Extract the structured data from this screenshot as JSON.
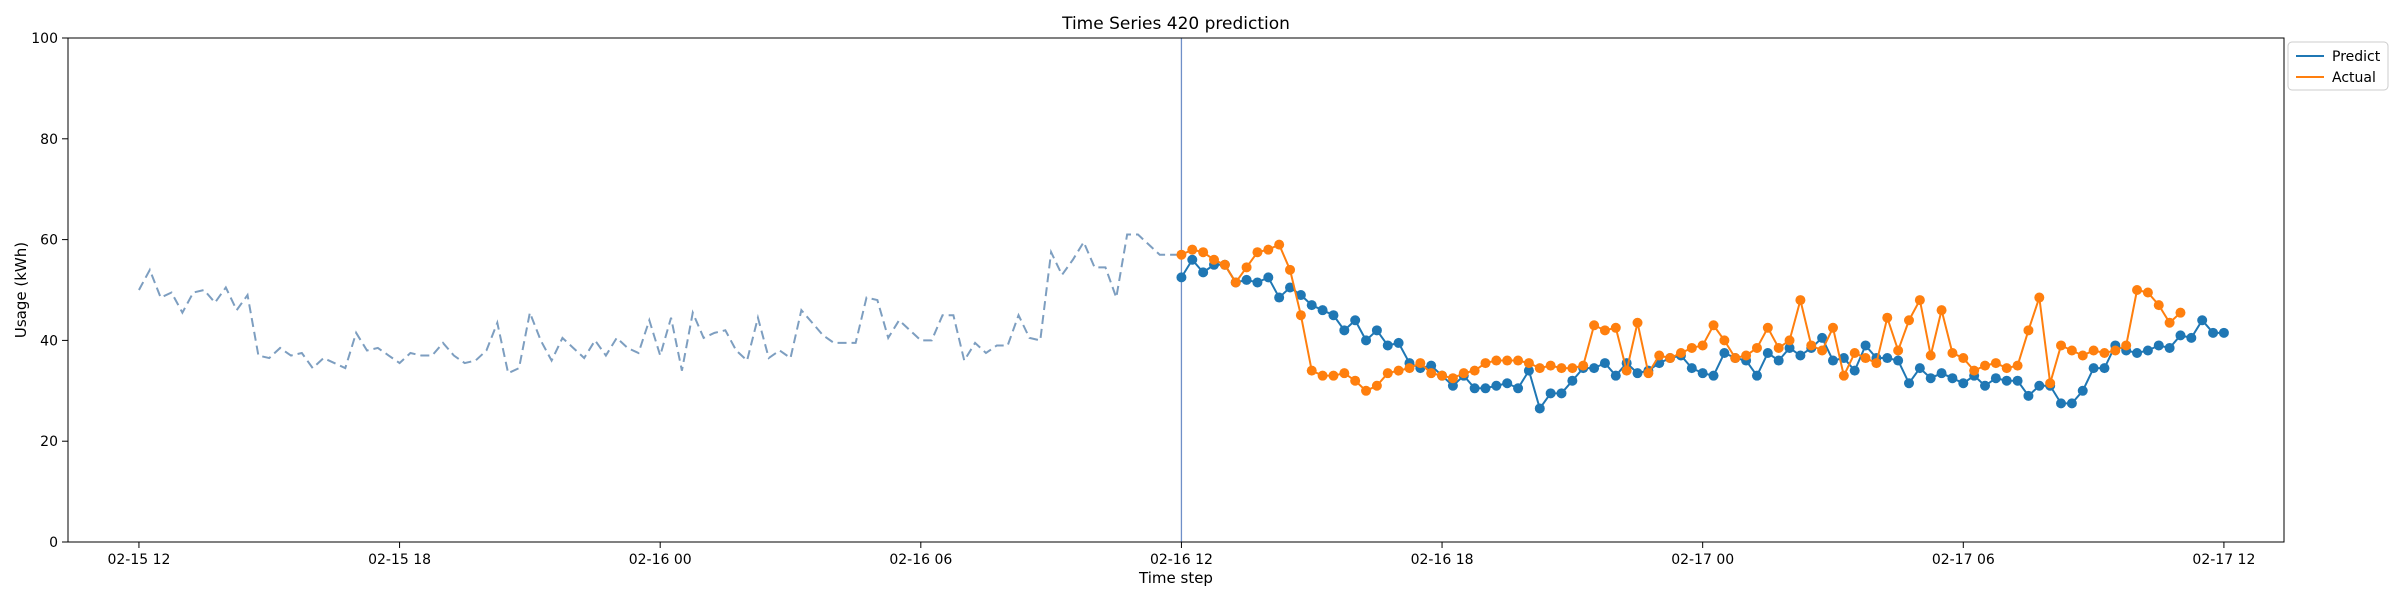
{
  "chart_data": {
    "type": "line",
    "title": "Time Series 420 prediction",
    "xlabel": "Time step",
    "ylabel": "Usage (kWh)",
    "ylim": [
      0,
      100
    ],
    "yticks": [
      0,
      20,
      40,
      60,
      80,
      100
    ],
    "xlim": [
      "2024-02-15 10:22",
      "2024-02-17 13:23"
    ],
    "xticks": [
      {
        "t": "2024-02-15 12:00",
        "label": "02-15 12"
      },
      {
        "t": "2024-02-15 18:00",
        "label": "02-15 18"
      },
      {
        "t": "2024-02-16 00:00",
        "label": "02-16 00"
      },
      {
        "t": "2024-02-16 06:00",
        "label": "02-16 06"
      },
      {
        "t": "2024-02-16 12:00",
        "label": "02-16 12"
      },
      {
        "t": "2024-02-16 18:00",
        "label": "02-16 18"
      },
      {
        "t": "2024-02-17 00:00",
        "label": "02-17 00"
      },
      {
        "t": "2024-02-17 06:00",
        "label": "02-17 06"
      },
      {
        "t": "2024-02-17 12:00",
        "label": "02-17 12"
      }
    ],
    "x_interval_minutes": 15,
    "forecast_start": "2024-02-16 12:00",
    "grid": false,
    "legend_position": "top-right",
    "history": {
      "start": "2024-02-15 12:00",
      "color": "#7d9ec0",
      "style": "dashed",
      "values": [
        50,
        54,
        48.5,
        49.5,
        45.5,
        49.5,
        50,
        47.5,
        50.5,
        46,
        49,
        37,
        36.5,
        38.5,
        37,
        37.5,
        34.5,
        36.5,
        35.5,
        34.5,
        41.5,
        38,
        38.5,
        37,
        35.5,
        37.5,
        37,
        37,
        39.5,
        37,
        35.5,
        36,
        38,
        43.5,
        33.5,
        34.5,
        45.5,
        40,
        36,
        40.5,
        38.5,
        36.5,
        40,
        37,
        40.5,
        38.5,
        37.5,
        44,
        37,
        44.5,
        34,
        45.5,
        40.5,
        41.5,
        42,
        38,
        36,
        44.5,
        36.5,
        38,
        36.5,
        46,
        43.5,
        41,
        39.5,
        39.5,
        39.5,
        48.5,
        48,
        40.5,
        44,
        42,
        40,
        40,
        45,
        45,
        36,
        39.5,
        37.5,
        39,
        39,
        45,
        40.5,
        40,
        57.5,
        53,
        56,
        59.5,
        54.5,
        54.5,
        48.5,
        61,
        61,
        59,
        57,
        57,
        57
      ]
    },
    "series": [
      {
        "name": "Predict",
        "color": "#1f77b4",
        "start": "2024-02-16 12:00",
        "values": [
          52.5,
          56,
          53.5,
          55,
          55,
          51.5,
          52,
          51.5,
          52.5,
          48.5,
          50.5,
          49,
          47,
          46,
          45,
          42,
          44,
          40,
          42,
          39,
          39.5,
          35.5,
          34.5,
          35,
          33,
          31,
          33,
          30.5,
          30.5,
          31,
          31.5,
          30.5,
          34,
          26.5,
          29.5,
          29.5,
          32,
          34.5,
          34.5,
          35.5,
          33,
          35.5,
          33.5,
          34,
          35.5,
          36.5,
          37,
          34.5,
          33.5,
          33,
          37.5,
          36.5,
          36,
          33,
          37.5,
          36,
          38.5,
          37,
          38.5,
          40.5,
          36,
          36.5,
          34,
          39,
          36.5,
          36.5,
          36,
          31.5,
          34.5,
          32.5,
          33.5,
          32.5,
          31.5,
          33,
          31,
          32.5,
          32,
          32,
          29,
          31,
          31,
          27.5,
          27.5,
          30,
          34.5,
          34.5,
          39,
          38,
          37.5,
          38,
          39,
          38.5,
          41,
          40.5,
          44,
          41.5,
          41.5
        ]
      },
      {
        "name": "Actual",
        "color": "#ff7f0e",
        "start": "2024-02-16 12:00",
        "values": [
          57,
          58,
          57.5,
          56,
          55,
          51.5,
          54.5,
          57.5,
          58,
          59,
          54,
          45,
          34,
          33,
          33,
          33.5,
          32,
          30,
          31,
          33.5,
          34,
          34.5,
          35.5,
          33.5,
          33,
          32.5,
          33.5,
          34,
          35.5,
          36,
          36,
          36,
          35.5,
          34.5,
          35,
          34.5,
          34.5,
          35,
          43,
          42,
          42.5,
          34,
          43.5,
          33.5,
          37,
          36.5,
          37.5,
          38.5,
          39,
          43,
          40,
          36.5,
          37,
          38.5,
          42.5,
          38.5,
          40,
          48,
          39,
          38,
          42.5,
          33,
          37.5,
          36.5,
          35.5,
          44.5,
          38,
          44,
          48,
          37,
          46,
          37.5,
          36.5,
          34,
          35,
          35.5,
          34.5,
          35,
          42,
          48.5,
          31.5,
          39,
          38,
          37,
          38,
          37.5,
          38,
          39,
          50,
          49.5,
          47,
          43.5,
          45.5
        ]
      }
    ]
  }
}
